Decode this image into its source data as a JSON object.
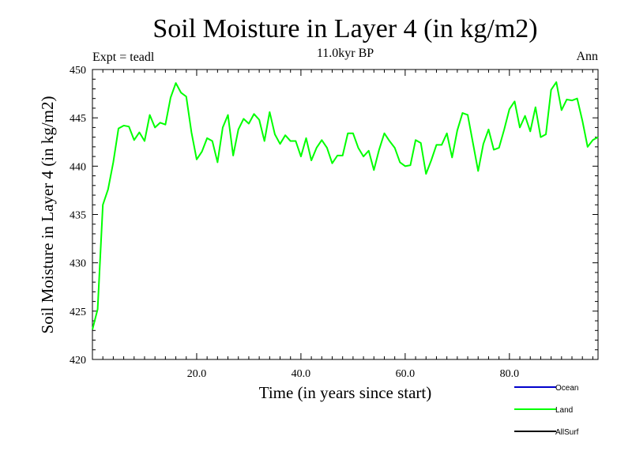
{
  "chart_data": {
    "type": "line",
    "title": "Soil Moisture in Layer 4 (in kg/m2)",
    "subtitle": "11.0kyr BP",
    "left_note": "Expt = teadl",
    "right_note": "Ann",
    "xlabel": "Time (in years since start)",
    "ylabel": "Soil Moisture in Layer 4 (in kg/m2)",
    "xlim": [
      0,
      97
    ],
    "ylim": [
      420,
      450
    ],
    "x_ticks": [
      20,
      40,
      60,
      80
    ],
    "x_tick_labels": [
      "20.0",
      "40.0",
      "60.0",
      "80.0"
    ],
    "y_ticks": [
      420,
      425,
      430,
      435,
      440,
      445,
      450
    ],
    "y_tick_labels": [
      "420",
      "425",
      "430",
      "435",
      "440",
      "445",
      "450"
    ],
    "legend_position": "bottom-right",
    "series": [
      {
        "name": "Ocean",
        "color": "#0000cc",
        "values": []
      },
      {
        "name": "Land",
        "color": "#00ff00",
        "x": [
          0,
          1,
          2,
          3,
          4,
          5,
          6,
          7,
          8,
          9,
          10,
          11,
          12,
          13,
          14,
          15,
          16,
          17,
          18,
          19,
          20,
          21,
          22,
          23,
          24,
          25,
          26,
          27,
          28,
          29,
          30,
          31,
          32,
          33,
          34,
          35,
          36,
          37,
          38,
          39,
          40,
          41,
          42,
          43,
          44,
          45,
          46,
          47,
          48,
          49,
          50,
          51,
          52,
          53,
          54,
          55,
          56,
          57,
          58,
          59,
          60,
          61,
          62,
          63,
          64,
          65,
          66,
          67,
          68,
          69,
          70,
          71,
          72,
          73,
          74,
          75,
          76,
          77,
          78,
          79,
          80,
          81,
          82,
          83,
          84,
          85,
          86,
          87,
          88,
          89,
          90,
          91,
          92,
          93,
          94,
          95,
          96,
          97
        ],
        "values": [
          423.1,
          425.2,
          436.0,
          437.6,
          440.4,
          443.9,
          444.2,
          444.1,
          442.7,
          443.5,
          442.6,
          445.3,
          444.0,
          444.5,
          444.3,
          447.1,
          448.6,
          447.6,
          447.2,
          443.5,
          440.7,
          441.5,
          442.9,
          442.6,
          440.4,
          444.0,
          445.3,
          441.1,
          443.8,
          444.9,
          444.4,
          445.4,
          444.8,
          442.6,
          445.6,
          443.3,
          442.3,
          443.2,
          442.6,
          442.6,
          441.0,
          442.9,
          440.6,
          441.9,
          442.7,
          441.9,
          440.3,
          441.1,
          441.1,
          443.4,
          443.4,
          441.9,
          441.0,
          441.6,
          439.6,
          441.7,
          443.4,
          442.6,
          441.9,
          440.4,
          440.0,
          440.1,
          442.7,
          442.4,
          439.2,
          440.6,
          442.2,
          442.2,
          443.4,
          440.9,
          443.7,
          445.5,
          445.3,
          442.4,
          439.5,
          442.3,
          443.8,
          441.7,
          441.9,
          443.8,
          445.9,
          446.7,
          444.0,
          445.2,
          443.6,
          446.1,
          443.0,
          443.3,
          447.9,
          448.7,
          445.8,
          446.9,
          446.8,
          447.0,
          444.7,
          442.0,
          442.7,
          443.0
        ]
      },
      {
        "name": "AllSurf",
        "color": "#000000",
        "values": []
      }
    ]
  }
}
